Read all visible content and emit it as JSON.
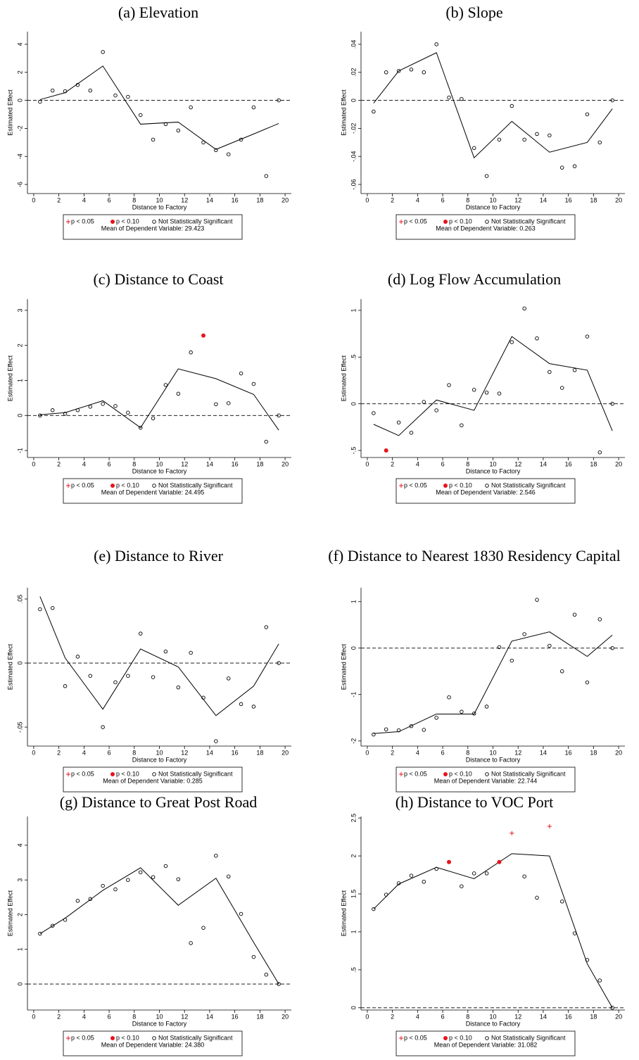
{
  "chart_data": [
    {
      "type": "scatter",
      "title": "(a) Elevation",
      "xlabel": "Distance to Factory",
      "ylabel": "Estimated Effect",
      "xlim": [
        -0.5,
        20.5
      ],
      "xticks": [
        0,
        2,
        4,
        6,
        8,
        10,
        12,
        14,
        16,
        18,
        20
      ],
      "ylim": [
        -6.65,
        4.9
      ],
      "yticks": [
        -6,
        -4,
        -2,
        0,
        2,
        4
      ],
      "reference_line": 0,
      "series": [
        {
          "name": "p < 0.05",
          "color": "#e8141c",
          "marker": "plus",
          "x": [],
          "values": []
        },
        {
          "name": "p < 0.10",
          "color": "#e8141c",
          "marker": "dot",
          "x": [],
          "values": []
        },
        {
          "name": "Not Statistically Significant",
          "color": "#000000",
          "marker": "circle",
          "x": [
            0.5,
            1.5,
            2.5,
            3.5,
            4.5,
            5.5,
            6.5,
            7.5,
            8.5,
            9.5,
            10.5,
            11.5,
            12.5,
            13.5,
            14.5,
            15.5,
            16.5,
            17.5,
            18.5,
            19.5
          ],
          "values": [
            -0.1,
            0.7,
            0.65,
            1.1,
            0.7,
            3.45,
            0.35,
            0.25,
            -1.05,
            -2.8,
            -1.7,
            -2.15,
            -0.5,
            -3.0,
            -3.55,
            -3.85,
            -2.8,
            -0.5,
            -5.4,
            0
          ]
        }
      ],
      "line": {
        "x": [
          0.5,
          2.5,
          5.5,
          8.5,
          11.5,
          14.5,
          17.5,
          19.5
        ],
        "values": [
          0.05,
          0.55,
          2.45,
          -1.7,
          -1.55,
          -3.5,
          -2.4,
          -1.65
        ]
      },
      "note": "Mean of Dependent Variable: 29.423"
    },
    {
      "type": "scatter",
      "title": "(b) Slope",
      "xlabel": "Distance to Factory",
      "ylabel": "Estimated Effect",
      "xlim": [
        -0.5,
        20.5
      ],
      "xticks": [
        0,
        2,
        4,
        6,
        8,
        10,
        12,
        14,
        16,
        18,
        20
      ],
      "ylim": [
        -0.0665,
        0.049
      ],
      "yticks": [
        {
          "value": -0.06,
          "label": "-.06"
        },
        {
          "value": -0.04,
          "label": "-.04"
        },
        {
          "value": -0.02,
          "label": "-.02"
        },
        0,
        {
          "value": 0.02,
          "label": ".02"
        },
        {
          "value": 0.04,
          "label": ".04"
        }
      ],
      "reference_line": 0,
      "series": [
        {
          "name": "p < 0.05",
          "color": "#e8141c",
          "marker": "plus",
          "x": [],
          "values": []
        },
        {
          "name": "p < 0.10",
          "color": "#e8141c",
          "marker": "dot",
          "x": [],
          "values": []
        },
        {
          "name": "Not Statistically Significant",
          "color": "#000000",
          "marker": "circle",
          "x": [
            0.5,
            1.5,
            2.5,
            3.5,
            4.5,
            5.5,
            6.5,
            7.5,
            8.5,
            9.5,
            10.5,
            11.5,
            12.5,
            13.5,
            14.5,
            15.5,
            16.5,
            17.5,
            18.5,
            19.5
          ],
          "values": [
            -0.008,
            0.02,
            0.021,
            0.022,
            0.02,
            0.04,
            0.002,
            0.001,
            -0.034,
            -0.054,
            -0.028,
            -0.004,
            -0.028,
            -0.024,
            -0.025,
            -0.048,
            -0.047,
            -0.01,
            -0.03,
            0
          ]
        }
      ],
      "line": {
        "x": [
          0.5,
          2.5,
          5.5,
          8.5,
          11.5,
          14.5,
          17.5,
          19.5
        ],
        "values": [
          -0.002,
          0.021,
          0.034,
          -0.041,
          -0.015,
          -0.037,
          -0.03,
          -0.006
        ]
      },
      "note": "Mean of Dependent Variable: 0.263"
    },
    {
      "type": "scatter",
      "title": "(c) Distance to Coast",
      "xlabel": "Distance to Factory",
      "ylabel": "Estimated Effect",
      "xlim": [
        -0.5,
        20.5
      ],
      "xticks": [
        0,
        2,
        4,
        6,
        8,
        10,
        12,
        14,
        16,
        18,
        20
      ],
      "ylim": [
        -1.2,
        3.32
      ],
      "yticks": [
        -1,
        0,
        1,
        2,
        3
      ],
      "reference_line": 0,
      "series": [
        {
          "name": "p < 0.05",
          "color": "#e8141c",
          "marker": "plus",
          "x": [],
          "values": []
        },
        {
          "name": "p < 0.10",
          "color": "#e8141c",
          "marker": "dot",
          "x": [
            13.5
          ],
          "values": [
            2.28
          ]
        },
        {
          "name": "Not Statistically Significant",
          "color": "#000000",
          "marker": "circle",
          "x": [
            0.5,
            1.5,
            2.5,
            3.5,
            4.5,
            5.5,
            6.5,
            7.5,
            8.5,
            9.5,
            10.5,
            11.5,
            12.5,
            14.5,
            15.5,
            16.5,
            17.5,
            18.5,
            19.5
          ],
          "values": [
            0,
            0.15,
            0.05,
            0.15,
            0.25,
            0.33,
            0.27,
            0.08,
            -0.35,
            -0.08,
            0.87,
            0.62,
            1.8,
            0.32,
            0.35,
            1.2,
            0.9,
            -0.75,
            0
          ]
        }
      ],
      "line": {
        "x": [
          0.5,
          2.5,
          5.5,
          8.5,
          11.5,
          14.5,
          17.5,
          19.5
        ],
        "values": [
          0.02,
          0.08,
          0.42,
          -0.35,
          1.33,
          1.05,
          0.6,
          -0.42
        ]
      },
      "note": "Mean of Dependent Variable: 24.495"
    },
    {
      "type": "scatter",
      "title": "(d) Log Flow Accumulation",
      "xlabel": "Distance to Factory",
      "ylabel": "Estimated Effect",
      "xlim": [
        -0.5,
        20.5
      ],
      "xticks": [
        0,
        2,
        4,
        6,
        8,
        10,
        12,
        14,
        16,
        18,
        20
      ],
      "ylim": [
        -0.575,
        1.12
      ],
      "yticks": [
        {
          "value": -0.5,
          "label": "-.5"
        },
        0,
        {
          "value": 0.5,
          "label": ".5"
        },
        1
      ],
      "reference_line": 0,
      "series": [
        {
          "name": "p < 0.05",
          "color": "#e8141c",
          "marker": "plus",
          "x": [],
          "values": []
        },
        {
          "name": "p < 0.10",
          "color": "#e8141c",
          "marker": "dot",
          "x": [
            1.5
          ],
          "values": [
            -0.5
          ]
        },
        {
          "name": "Not Statistically Significant",
          "color": "#000000",
          "marker": "circle",
          "x": [
            0.5,
            2.5,
            3.5,
            4.5,
            5.5,
            6.5,
            7.5,
            8.5,
            9.5,
            10.5,
            11.5,
            12.5,
            13.5,
            14.5,
            15.5,
            16.5,
            17.5,
            18.5,
            19.5
          ],
          "values": [
            -0.1,
            -0.2,
            -0.31,
            0.02,
            -0.07,
            0.2,
            -0.23,
            0.15,
            0.12,
            0.11,
            0.66,
            1.02,
            0.7,
            0.34,
            0.17,
            0.36,
            0.72,
            -0.52,
            0
          ]
        }
      ],
      "line": {
        "x": [
          0.5,
          2.5,
          5.5,
          8.5,
          11.5,
          14.5,
          17.5,
          19.5
        ],
        "values": [
          -0.22,
          -0.34,
          0.04,
          -0.07,
          0.72,
          0.43,
          0.36,
          -0.29
        ]
      },
      "note": "Mean of Dependent Variable: 2.546"
    },
    {
      "type": "scatter",
      "title": "(e) Distance to River",
      "xlabel": "Distance to Factory",
      "ylabel": "Estimated Effect",
      "xlim": [
        -0.5,
        20.5
      ],
      "xticks": [
        0,
        2,
        4,
        6,
        8,
        10,
        12,
        14,
        16,
        18,
        20
      ],
      "ylim": [
        -0.0648,
        0.0588
      ],
      "yticks": [
        {
          "value": -0.05,
          "label": "-.05"
        },
        0,
        {
          "value": 0.05,
          "label": ".05"
        }
      ],
      "reference_line": 0,
      "series": [
        {
          "name": "p < 0.05",
          "color": "#e8141c",
          "marker": "plus",
          "x": [],
          "values": []
        },
        {
          "name": "p < 0.10",
          "color": "#e8141c",
          "marker": "dot",
          "x": [],
          "values": []
        },
        {
          "name": "Not Statistically Significant",
          "color": "#000000",
          "marker": "circle",
          "x": [
            0.5,
            1.5,
            2.5,
            3.5,
            4.5,
            5.5,
            6.5,
            7.5,
            8.5,
            9.5,
            10.5,
            11.5,
            12.5,
            13.5,
            14.5,
            15.5,
            16.5,
            17.5,
            18.5,
            19.5
          ],
          "values": [
            0.042,
            0.043,
            -0.018,
            0.005,
            -0.01,
            -0.05,
            -0.015,
            -0.01,
            0.023,
            -0.011,
            0.009,
            -0.019,
            0.008,
            -0.027,
            -0.061,
            -0.012,
            -0.032,
            -0.034,
            0.028,
            0
          ]
        }
      ],
      "line": {
        "x": [
          0.5,
          2.5,
          5.5,
          8.5,
          11.5,
          14.5,
          17.5,
          19.5
        ],
        "values": [
          0.052,
          0.004,
          -0.036,
          0.011,
          -0.003,
          -0.041,
          -0.018,
          0.015
        ]
      },
      "note": "Mean of Dependent Variable: 0.285"
    },
    {
      "type": "scatter",
      "title": "(f) Distance to Nearest 1830 Residency Capital",
      "xlabel": "Distance to Factory",
      "ylabel": "Estimated Effect",
      "xlim": [
        -0.5,
        20.5
      ],
      "xticks": [
        0,
        2,
        4,
        6,
        8,
        10,
        12,
        14,
        16,
        18,
        20
      ],
      "ylim": [
        -2.11,
        1.3
      ],
      "yticks": [
        -2,
        -1,
        0,
        1
      ],
      "reference_line": 0,
      "series": [
        {
          "name": "p < 0.05",
          "color": "#e8141c",
          "marker": "plus",
          "x": [],
          "values": []
        },
        {
          "name": "p < 0.10",
          "color": "#e8141c",
          "marker": "dot",
          "x": [],
          "values": []
        },
        {
          "name": "Not Statistically Significant",
          "color": "#000000",
          "marker": "circle",
          "x": [
            0.5,
            1.5,
            2.5,
            3.5,
            4.5,
            5.5,
            6.5,
            7.5,
            8.5,
            9.5,
            10.5,
            11.5,
            12.5,
            13.5,
            14.5,
            15.5,
            16.5,
            17.5,
            18.5,
            19.5
          ],
          "values": [
            -1.86,
            -1.75,
            -1.77,
            -1.68,
            -1.76,
            -1.5,
            -1.06,
            -1.37,
            -1.41,
            -1.26,
            0.02,
            -0.27,
            0.3,
            1.04,
            0.05,
            -0.5,
            0.72,
            -0.74,
            0.62,
            0
          ]
        }
      ],
      "line": {
        "x": [
          0.5,
          2.5,
          5.5,
          8.5,
          11.5,
          14.5,
          17.5,
          19.5
        ],
        "values": [
          -1.84,
          -1.8,
          -1.42,
          -1.42,
          0.15,
          0.35,
          -0.18,
          0.28
        ]
      },
      "note": "Mean of Dependent Variable: 22.744"
    },
    {
      "type": "scatter",
      "title": "(g) Distance to Great Post Road",
      "xlabel": "Distance to Factory",
      "ylabel": "Estimated Effect",
      "xlim": [
        -0.5,
        20.5
      ],
      "xticks": [
        0,
        2,
        4,
        6,
        8,
        10,
        12,
        14,
        16,
        18,
        20
      ],
      "ylim": [
        -0.75,
        4.83
      ],
      "yticks": [
        0,
        1,
        2,
        3,
        4
      ],
      "reference_line": 0,
      "series": [
        {
          "name": "p < 0.05",
          "color": "#e8141c",
          "marker": "plus",
          "x": [],
          "values": []
        },
        {
          "name": "p < 0.10",
          "color": "#e8141c",
          "marker": "dot",
          "x": [],
          "values": []
        },
        {
          "name": "Not Statistically Significant",
          "color": "#000000",
          "marker": "circle",
          "x": [
            0.5,
            1.5,
            2.5,
            3.5,
            4.5,
            5.5,
            6.5,
            7.5,
            8.5,
            9.5,
            10.5,
            11.5,
            12.5,
            13.5,
            14.5,
            15.5,
            16.5,
            17.5,
            18.5,
            19.5
          ],
          "values": [
            1.45,
            1.68,
            1.85,
            2.4,
            2.45,
            2.83,
            2.73,
            3.0,
            3.22,
            3.08,
            3.4,
            3.02,
            1.18,
            1.62,
            3.7,
            3.1,
            2.02,
            0.78,
            0.27,
            0
          ]
        }
      ],
      "line": {
        "x": [
          0.5,
          2.5,
          5.5,
          8.5,
          11.5,
          14.5,
          17.5,
          19.5
        ],
        "values": [
          1.45,
          1.9,
          2.7,
          3.35,
          2.27,
          3.05,
          1.2,
          0
        ]
      },
      "note": "Mean of Dependent Variable: 24.380"
    },
    {
      "type": "scatter",
      "title": "(h) Distance to VOC Port",
      "xlabel": "Distance to Factory",
      "ylabel": "Estimated Effect",
      "xlim": [
        -0.5,
        20.5
      ],
      "xticks": [
        0,
        2,
        4,
        6,
        8,
        10,
        12,
        14,
        16,
        18,
        20
      ],
      "ylim": [
        -0.03,
        2.52
      ],
      "yticks": [
        0,
        {
          "value": 0.5,
          "label": ".5"
        },
        1,
        1.5,
        2,
        2.5
      ],
      "reference_line": 0,
      "series": [
        {
          "name": "p < 0.05",
          "color": "#e8141c",
          "marker": "plus",
          "x": [
            11.5,
            14.5
          ],
          "values": [
            2.3,
            2.39
          ]
        },
        {
          "name": "p < 0.10",
          "color": "#e8141c",
          "marker": "dot",
          "x": [
            6.5,
            10.5
          ],
          "values": [
            1.92,
            1.92
          ]
        },
        {
          "name": "Not Statistically Significant",
          "color": "#000000",
          "marker": "circle",
          "x": [
            0.5,
            1.5,
            2.5,
            3.5,
            4.5,
            5.5,
            7.5,
            8.5,
            9.5,
            12.5,
            13.5,
            15.5,
            16.5,
            17.5,
            18.5,
            19.5
          ],
          "values": [
            1.3,
            1.49,
            1.64,
            1.74,
            1.66,
            1.83,
            1.6,
            1.77,
            1.77,
            1.73,
            1.45,
            1.4,
            0.98,
            0.63,
            0.36,
            0
          ]
        }
      ],
      "line": {
        "x": [
          0.5,
          2.5,
          5.5,
          8.5,
          11.5,
          14.5,
          17.5,
          19.5
        ],
        "values": [
          1.3,
          1.63,
          1.85,
          1.7,
          2.03,
          2.0,
          0.58,
          0
        ]
      },
      "note": "Mean of Dependent Variable: 31.082"
    }
  ]
}
